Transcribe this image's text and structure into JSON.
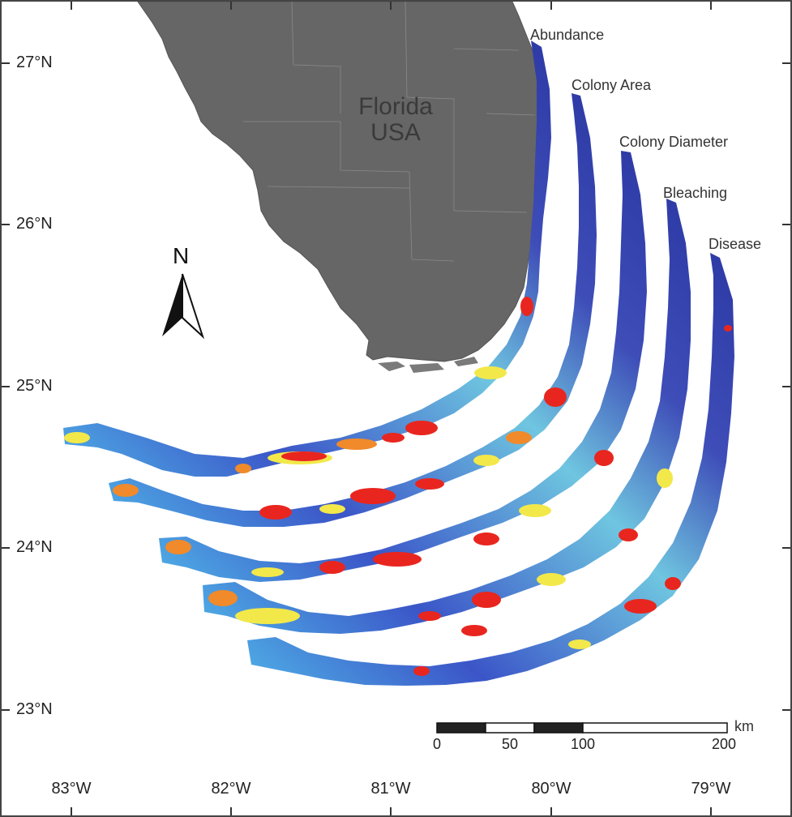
{
  "map": {
    "land_label": "Florida",
    "country_label": "USA",
    "north_label": "N",
    "latitude_labels": [
      "27°N",
      "26°N",
      "25°N",
      "24°N",
      "23°N"
    ],
    "longitude_labels": [
      "83°W",
      "82°W",
      "81°W",
      "80°W",
      "79°W"
    ],
    "bands": [
      "Abundance",
      "Colony Area",
      "Colony Diameter",
      "Bleaching",
      "Disease"
    ],
    "scale_bar": {
      "unit": "km",
      "ticks": [
        "0",
        "50",
        "100",
        "200"
      ]
    },
    "colors": {
      "land": "#666666",
      "water": "#ffffff",
      "ramp": [
        "#2e3da8",
        "#3e6fd0",
        "#5bc4e8",
        "#9fe09a",
        "#f2e84a",
        "#f08a2a",
        "#e8261f"
      ]
    }
  }
}
